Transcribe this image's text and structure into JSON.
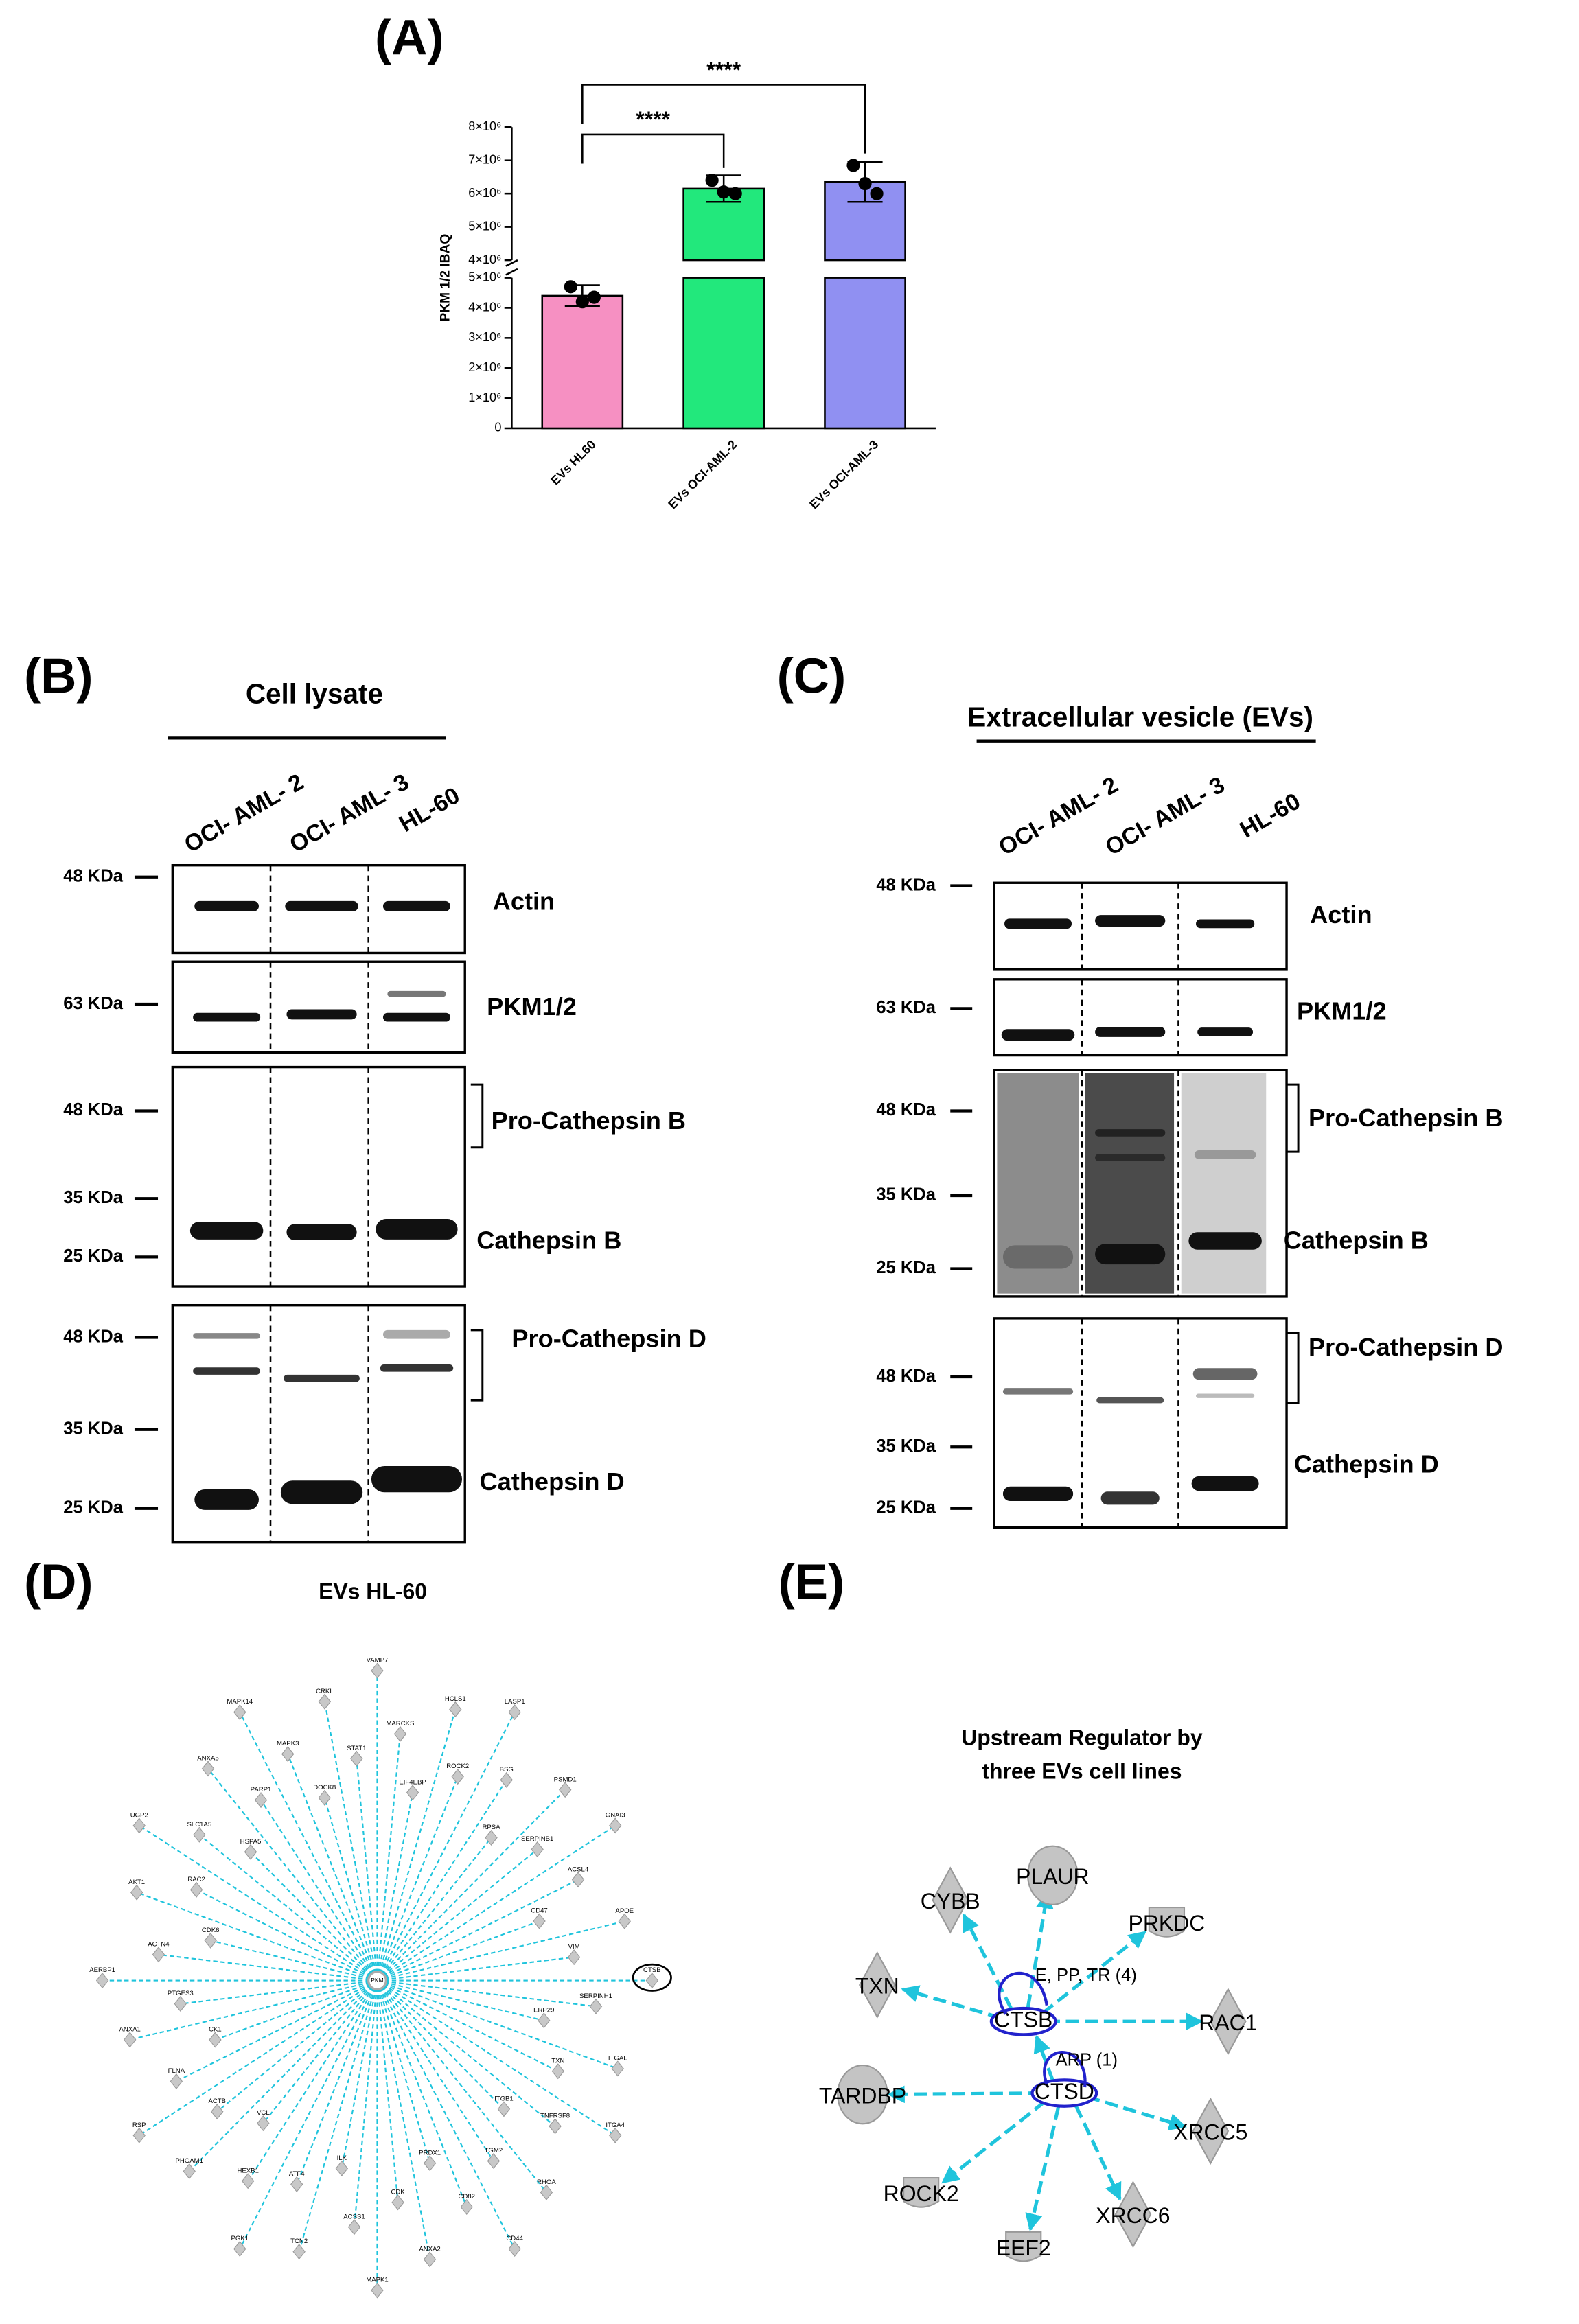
{
  "panel_labels": [
    "(A)",
    "(B)",
    "(C)",
    "(D)",
    "(E)"
  ],
  "chart_data": {
    "type": "bar",
    "ylabel": "PKM 1/2 IBAQ",
    "categories": [
      "EVs HL60",
      "EVs OCI-AML-2",
      "EVs OCI-AML-3"
    ],
    "values": [
      4400000,
      6150000,
      6350000
    ],
    "errors": [
      350000,
      400000,
      600000
    ],
    "points": [
      [
        4700000,
        4200000,
        4350000
      ],
      [
        6400000,
        6050000,
        6000000
      ],
      [
        6850000,
        6300000,
        6000000
      ]
    ],
    "colors": [
      "#f690c2",
      "#22e87c",
      "#9090f2"
    ],
    "segments": [
      {
        "ylim": [
          0,
          5000000
        ],
        "yticks": [
          0,
          {
            "value": 1000000,
            "label": "1×10⁶"
          },
          {
            "value": 2000000,
            "label": "2×10⁶"
          },
          {
            "value": 3000000,
            "label": "3×10⁶"
          },
          {
            "value": 4000000,
            "label": "4×10⁶"
          },
          {
            "value": 5000000,
            "label": "5×10⁶"
          }
        ]
      },
      {
        "ylim": [
          4000000,
          8000000
        ],
        "yticks": [
          {
            "value": 4000000,
            "label": "4×10⁶"
          },
          {
            "value": 5000000,
            "label": "5×10⁶"
          },
          {
            "value": 6000000,
            "label": "6×10⁶"
          },
          {
            "value": 7000000,
            "label": "7×10⁶"
          },
          {
            "value": 8000000,
            "label": "8×10⁶"
          }
        ]
      }
    ],
    "significance": [
      "****",
      "****"
    ]
  },
  "blots": [
    {
      "title": "Cell lysate",
      "lanes": [
        "OCI- AML- 2",
        "OCI- AML- 3",
        "HL-60"
      ],
      "rows": [
        {
          "labels": [
            "Actin"
          ],
          "markers": [
            "48 KDa"
          ]
        },
        {
          "labels": [
            "PKM1/2"
          ],
          "markers": [
            "63 KDa"
          ]
        },
        {
          "labels": [
            "Pro-Cathepsin B",
            "Cathepsin B"
          ],
          "markers": [
            "48 KDa",
            "35 KDa",
            "25 KDa"
          ]
        },
        {
          "labels": [
            "Pro-Cathepsin D",
            "Cathepsin D"
          ],
          "markers": [
            "48 KDa",
            "35 KDa",
            "25 KDa"
          ]
        }
      ]
    },
    {
      "title": "Extracellular vesicle (EVs)",
      "lanes": [
        "OCI- AML- 2",
        "OCI- AML- 3",
        "HL-60"
      ],
      "rows": [
        {
          "labels": [
            "Actin"
          ],
          "markers": [
            "48 KDa"
          ]
        },
        {
          "labels": [
            "PKM1/2"
          ],
          "markers": [
            "63 KDa"
          ]
        },
        {
          "labels": [
            "Pro-Cathepsin B",
            "Cathepsin B"
          ],
          "markers": [
            "48 KDa",
            "35 KDa",
            "25 KDa"
          ]
        },
        {
          "labels": [
            "Pro-Cathepsin D",
            "Cathepsin D"
          ],
          "markers": [
            "48 KDa",
            "35 KDa",
            "25 KDa"
          ]
        }
      ]
    }
  ],
  "network_d": {
    "title": "EVs HL-60",
    "hub": "PKM",
    "nodes": [
      "VAMP7",
      "MARCKS",
      "EIF4EBP",
      "HCLS1",
      "ROCK2",
      "LASP1",
      "BSG",
      "RPSA",
      "PSMD1",
      "SERPINB1",
      "GNAI3",
      "ACSL4",
      "CD47",
      "APOE",
      "VIM",
      "CTSB",
      "SERPINH1",
      "ERP29",
      "ITGAL",
      "TXN",
      "ITGA4",
      "TNFRSF8",
      "ITGB1",
      "RHOA",
      "TGM2",
      "CD44",
      "CD82",
      "PRDX1",
      "ANXA2",
      "CDK",
      "MAPK1",
      "ACSS1",
      "ILK",
      "TCN2",
      "ATF4",
      "PGK1",
      "HEXB1",
      "VCL",
      "PHGAM1",
      "ACTB",
      "RSP",
      "FLNA",
      "CK1",
      "ANXA1",
      "PTGES3",
      "AERBP1",
      "ACTN4",
      "CDK6",
      "AKT1",
      "RAC2",
      "UGP2",
      "SLC1A5",
      "HSPA5",
      "ANXA5",
      "PARP1",
      "MAPK14",
      "MAPK3",
      "DOCK8",
      "CRKL",
      "STAT1"
    ]
  },
  "network_e": {
    "title": [
      "Upstream Regulator by",
      "three EVs cell lines"
    ],
    "nodes": [
      "CTSB",
      "CTSD",
      "PLAUR",
      "CYBB",
      "PRKDC",
      "TXN",
      "RAC1",
      "TARDBP",
      "XRCC5",
      "ROCK2",
      "EEF2",
      "XRCC6"
    ],
    "edge_labels": [
      "E, PP, TR (4)",
      "ARP (1)"
    ]
  }
}
